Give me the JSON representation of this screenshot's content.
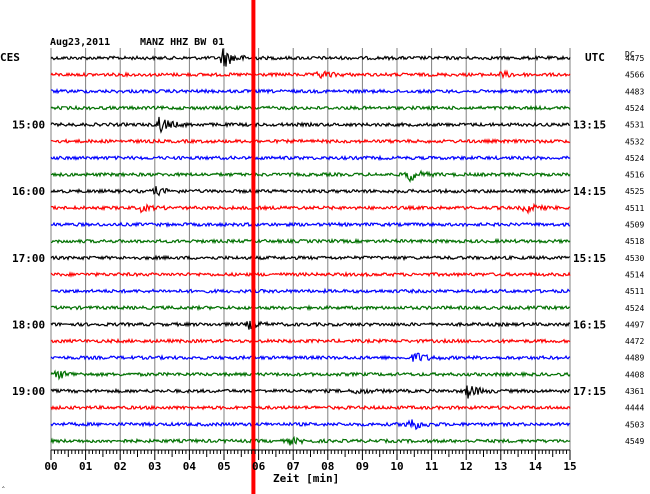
{
  "header": {
    "date": "Aug23,2011",
    "station": "MANZ HHZ BW 01",
    "left_zone": "CES",
    "right_zone": "UTC",
    "dc_header": "DC",
    "corner_mark": "‸"
  },
  "chart_data": {
    "type": "line",
    "title": "Aug23,2011  MANZ HHZ BW 01",
    "xlabel": "Zeit [min]",
    "x_ticks": [
      "00",
      "01",
      "02",
      "03",
      "04",
      "05",
      "06",
      "07",
      "08",
      "09",
      "10",
      "11",
      "12",
      "13",
      "14",
      "15"
    ],
    "xlim": [
      0,
      15
    ],
    "trace_colors": [
      "#000000",
      "#ff0000",
      "#0000ff",
      "#007000"
    ],
    "left_time_labels": [
      "15:00",
      "16:00",
      "17:00",
      "18:00",
      "19:00"
    ],
    "right_time_labels": [
      "13:15",
      "14:15",
      "15:15",
      "16:15",
      "17:15"
    ],
    "time_label_traces": [
      4,
      8,
      12,
      16,
      20
    ],
    "dc_values": [
      "4475",
      "4566",
      "4483",
      "4524",
      "4531",
      "4532",
      "4524",
      "4516",
      "4525",
      "4511",
      "4509",
      "4518",
      "4530",
      "4514",
      "4511",
      "4524",
      "4497",
      "4472",
      "4489",
      "4408",
      "4361",
      "4444",
      "4503",
      "4549"
    ],
    "marker": {
      "minute": 5.85,
      "color": "#ff0000"
    },
    "events": [
      {
        "trace": 0,
        "minute": 4.95,
        "amp": 11
      },
      {
        "trace": 1,
        "minute": 7.75,
        "amp": 4
      },
      {
        "trace": 1,
        "minute": 13.0,
        "amp": 3
      },
      {
        "trace": 4,
        "minute": 3.1,
        "amp": 9
      },
      {
        "trace": 7,
        "minute": 10.3,
        "amp": 8
      },
      {
        "trace": 8,
        "minute": 3.0,
        "amp": 4
      },
      {
        "trace": 9,
        "minute": 2.6,
        "amp": 3
      },
      {
        "trace": 9,
        "minute": 13.7,
        "amp": 5
      },
      {
        "trace": 16,
        "minute": 5.7,
        "amp": 4
      },
      {
        "trace": 18,
        "minute": 10.5,
        "amp": 6
      },
      {
        "trace": 19,
        "minute": 0.2,
        "amp": 4
      },
      {
        "trace": 20,
        "minute": 8.8,
        "amp": 3
      },
      {
        "trace": 20,
        "minute": 12.0,
        "amp": 8
      },
      {
        "trace": 22,
        "minute": 10.3,
        "amp": 9
      },
      {
        "trace": 23,
        "minute": 6.9,
        "amp": 3
      }
    ]
  }
}
